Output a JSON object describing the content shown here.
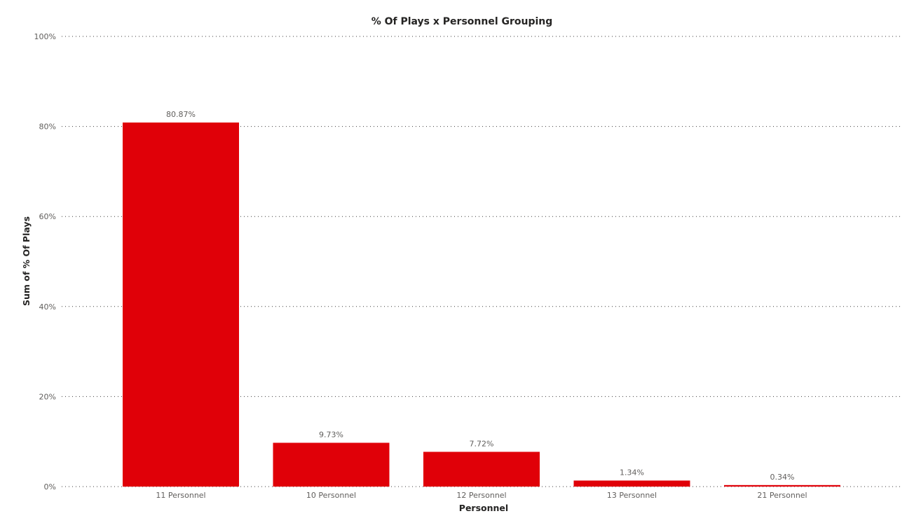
{
  "chart_data": {
    "type": "bar",
    "title": "% Of Plays x Personnel Grouping",
    "xlabel": "Personnel",
    "ylabel": "Sum of % Of Plays",
    "categories": [
      "11 Personnel",
      "10 Personnel",
      "12 Personnel",
      "13 Personnel",
      "21 Personnel"
    ],
    "values": [
      80.87,
      9.73,
      7.72,
      1.34,
      0.34
    ],
    "data_labels": [
      "80.87%",
      "9.73%",
      "7.72%",
      "1.34%",
      "0.34%"
    ],
    "ylim": [
      0,
      100
    ],
    "yticks": [
      0,
      20,
      40,
      60,
      80,
      100
    ],
    "ytick_labels": [
      "0%",
      "20%",
      "40%",
      "60%",
      "80%",
      "100%"
    ],
    "grid": true,
    "grid_style": "dotted",
    "legend": "none",
    "bar_color": "#e00008"
  }
}
